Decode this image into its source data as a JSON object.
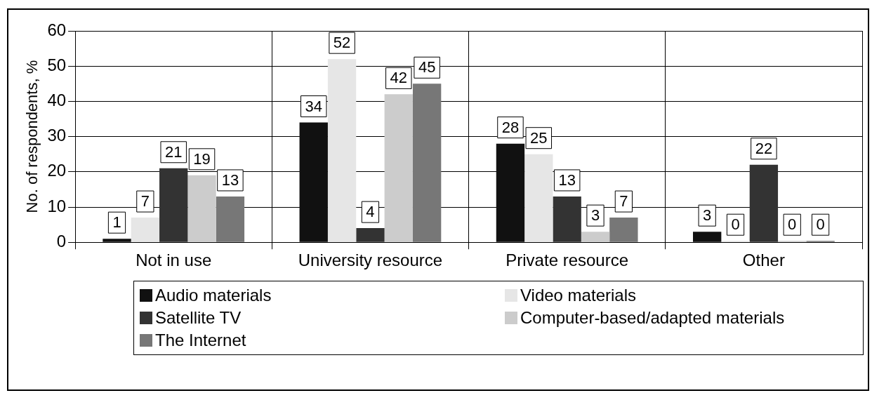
{
  "chart_data": {
    "type": "bar",
    "ylabel": "No. of respondents, %",
    "categories": [
      "Not in use",
      "University resource",
      "Private resource",
      "Other"
    ],
    "series": [
      {
        "name": "Audio materials",
        "color": "#111111",
        "values": [
          1,
          34,
          28,
          3
        ]
      },
      {
        "name": "Video materials",
        "color": "#e6e6e6",
        "values": [
          7,
          52,
          25,
          0
        ]
      },
      {
        "name": "Satellite TV",
        "color": "#333333",
        "values": [
          21,
          4,
          13,
          22
        ]
      },
      {
        "name": "Computer-based/adapted materials",
        "color": "#cccccc",
        "values": [
          19,
          42,
          3,
          0
        ]
      },
      {
        "name": "The Internet",
        "color": "#777777",
        "values": [
          13,
          45,
          7,
          0
        ]
      }
    ],
    "ylim": [
      0,
      60
    ],
    "yticks": [
      0,
      10,
      20,
      30,
      40,
      50,
      60
    ],
    "grid": true,
    "legend": "bottom",
    "data_labels": true
  }
}
